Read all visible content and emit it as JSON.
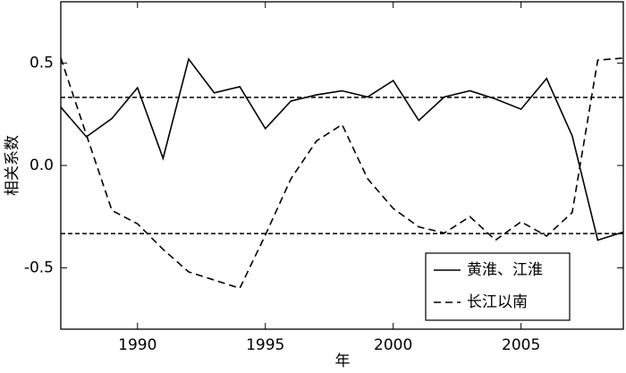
{
  "chart_data": {
    "type": "line",
    "x_label": "年",
    "y_label": "相关系数",
    "x": [
      1987,
      1988,
      1989,
      1990,
      1991,
      1992,
      1993,
      1994,
      1995,
      1996,
      1997,
      1998,
      1999,
      2000,
      2001,
      2002,
      2003,
      2004,
      2005,
      2006,
      2007,
      2008,
      2009
    ],
    "series": [
      {
        "name": "黄淮、江淮",
        "color": "#000000",
        "dash": "solid",
        "values": [
          0.285,
          0.14,
          0.23,
          0.38,
          0.035,
          0.52,
          0.355,
          0.385,
          0.18,
          0.315,
          0.345,
          0.365,
          0.335,
          0.415,
          0.22,
          0.335,
          0.365,
          0.325,
          0.275,
          0.425,
          0.145,
          -0.365,
          -0.325
        ]
      },
      {
        "name": "长江以南",
        "color": "#000000",
        "dash": "dashed",
        "values": [
          0.525,
          0.15,
          -0.22,
          -0.285,
          -0.41,
          -0.52,
          -0.56,
          -0.6,
          -0.34,
          -0.065,
          0.12,
          0.2,
          -0.065,
          -0.21,
          -0.3,
          -0.33,
          -0.25,
          -0.365,
          -0.275,
          -0.345,
          -0.23,
          0.515,
          0.525
        ]
      }
    ],
    "reference_lines": [
      0.333,
      -0.333
    ],
    "xlim": [
      1987,
      2009
    ],
    "xticks": [
      1990,
      1995,
      2000,
      2005
    ],
    "ylim": [
      -0.8,
      0.8
    ],
    "yticks": [
      -0.5,
      {
        "value": 0,
        "label": "0.0"
      },
      0.5
    ],
    "legend": "lower right"
  }
}
